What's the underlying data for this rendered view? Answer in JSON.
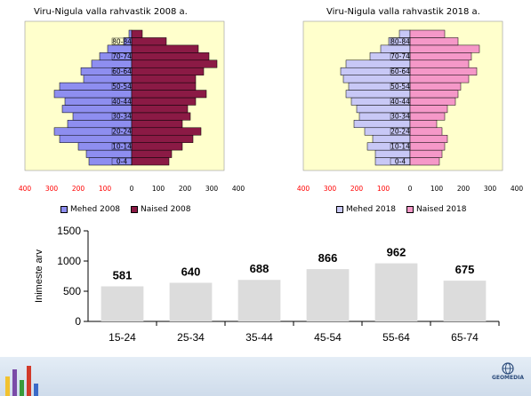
{
  "chart_data": [
    {
      "type": "population-pyramid",
      "title": "Viru-Nigula valla rahvastik 2008 a.",
      "age_groups": [
        "0-4",
        "5-9",
        "10-14",
        "15-19",
        "20-24",
        "25-29",
        "30-34",
        "35-39",
        "40-44",
        "45-49",
        "50-54",
        "55-59",
        "60-64",
        "65-69",
        "70-74",
        "75-79",
        "80-84",
        "85+"
      ],
      "age_labels": [
        "0-4",
        "10-14",
        "20-24",
        "30-34",
        "40-44",
        "50-54",
        "60-64",
        "70-74",
        "80-84"
      ],
      "series": [
        {
          "name": "Mehed 2008",
          "values": [
            160,
            170,
            200,
            270,
            290,
            240,
            220,
            260,
            250,
            290,
            270,
            180,
            190,
            150,
            120,
            90,
            30,
            10
          ]
        },
        {
          "name": "Naised 2008",
          "values": [
            140,
            150,
            190,
            230,
            260,
            190,
            220,
            210,
            240,
            280,
            240,
            240,
            270,
            320,
            290,
            250,
            130,
            40
          ]
        }
      ],
      "xticks": [
        "400",
        "300",
        "200",
        "100",
        "0",
        "100",
        "200",
        "300",
        "400"
      ],
      "xlim": [
        -400,
        400
      ]
    },
    {
      "type": "population-pyramid",
      "title": "Viru-Nigula valla rahvastik 2018 a.",
      "age_groups": [
        "0-4",
        "5-9",
        "10-14",
        "15-19",
        "20-24",
        "25-29",
        "30-34",
        "35-39",
        "40-44",
        "45-49",
        "50-54",
        "55-59",
        "60-64",
        "65-69",
        "70-74",
        "75-79",
        "80-84",
        "85+"
      ],
      "age_labels": [
        "0-4",
        "10-14",
        "20-24",
        "30-34",
        "40-44",
        "50-54",
        "60-64",
        "70-74",
        "80-84"
      ],
      "series": [
        {
          "name": "Mehed 2018",
          "values": [
            130,
            130,
            160,
            140,
            170,
            210,
            190,
            200,
            220,
            240,
            230,
            250,
            260,
            240,
            150,
            110,
            80,
            40
          ]
        },
        {
          "name": "Naised 2018",
          "values": [
            110,
            120,
            130,
            140,
            120,
            100,
            130,
            140,
            170,
            180,
            190,
            220,
            250,
            220,
            230,
            260,
            180,
            130
          ]
        }
      ],
      "xticks": [
        "400",
        "300",
        "200",
        "100",
        "0",
        "100",
        "200",
        "300",
        "400"
      ],
      "xlim": [
        -400,
        400
      ]
    },
    {
      "type": "bar",
      "categories": [
        "15-24",
        "25-34",
        "35-44",
        "45-54",
        "55-64",
        "65-74"
      ],
      "values": [
        581,
        640,
        688,
        866,
        962,
        675
      ],
      "ylabel": "Inimeste arv",
      "ylim": [
        0,
        1500
      ],
      "yticks": [
        "0",
        "500",
        "1000",
        "1500"
      ]
    }
  ],
  "colors": {
    "plot_bg": "#ffffcc",
    "male_2008": "#8e8ef0",
    "female_2008": "#8b1a45",
    "male_2018": "#c8c8f6",
    "female_2018": "#f598c8",
    "bar_fill": "#dcdcdc",
    "axis_red": "#ff0000"
  },
  "legend": {
    "male_2008": "Mehed 2008",
    "female_2008": "Naised 2008",
    "male_2018": "Mehed 2018",
    "female_2018": "Naised 2018"
  },
  "branding": {
    "logo_text": "GEOMEDIA"
  }
}
